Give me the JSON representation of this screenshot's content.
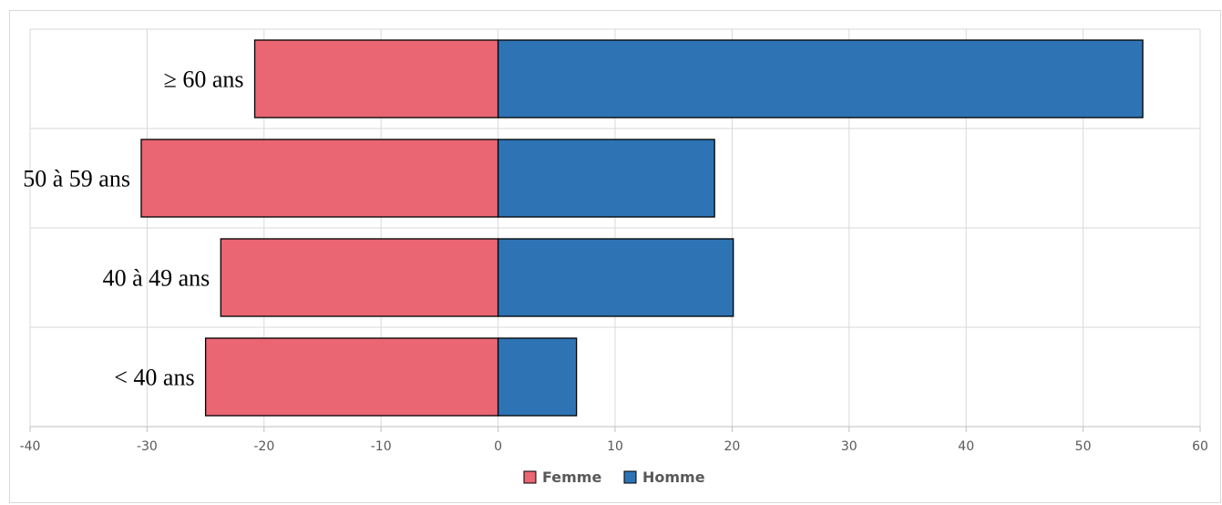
{
  "chart_data": {
    "type": "bar",
    "orientation": "horizontal",
    "stacking": "diverging",
    "categories": [
      "< 40 ans",
      "40 à 49 ans",
      "50 à 59 ans",
      "≥ 60 ans"
    ],
    "series": [
      {
        "name": "Femme",
        "color": "#e96672",
        "values": [
          -25,
          -23.7,
          -30.5,
          -20.8
        ]
      },
      {
        "name": "Homme",
        "color": "#2e74b5",
        "values": [
          6.7,
          20.1,
          18.5,
          55.1
        ]
      }
    ],
    "xlim": [
      -40,
      60
    ],
    "xticks": [
      "-40",
      "-30",
      "-20",
      "-10",
      "0",
      "10",
      "20",
      "30",
      "40",
      "50",
      "60"
    ],
    "title": "",
    "xlabel": "",
    "ylabel": "",
    "grid": true,
    "legend_position": "bottom"
  }
}
